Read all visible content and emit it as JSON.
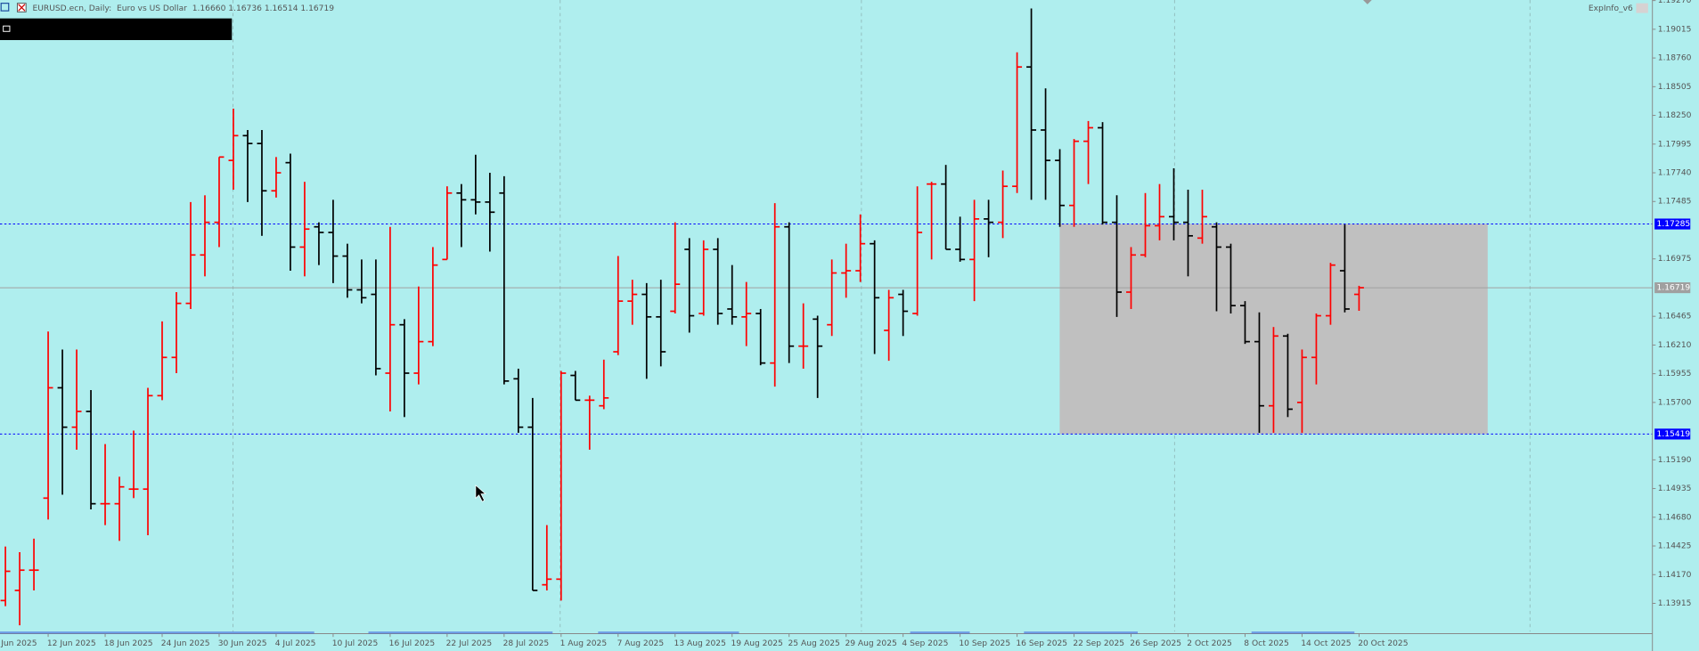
{
  "chart_data": {
    "type": "ohlc",
    "title": "EURUSD.ecn, Daily:  Euro vs US Dollar  1.16660 1.16736 1.16514 1.16719",
    "indicator": "ExpInfo_v6",
    "first_date_label": "Jun 2025",
    "up_color": "#ff0000",
    "down_color": "#000000",
    "ylim": [
      1.13665,
      1.19275
    ],
    "yticks": [
      1.13915,
      {
        "value": 1.1417,
        "label": "1.14170"
      },
      1.14425,
      {
        "value": 1.1468,
        "label": "1.14680"
      },
      1.14935,
      {
        "value": 1.1519,
        "label": "1.15190"
      },
      {
        "value": 1.157,
        "label": "1.15700"
      },
      1.15955,
      {
        "value": 1.1621,
        "label": "1.16210"
      },
      1.16465,
      1.16975,
      1.17485,
      {
        "value": 1.1774,
        "label": "1.17740"
      },
      1.17995,
      {
        "value": 1.1825,
        "label": "1.18250"
      },
      1.18505,
      {
        "value": 1.1876,
        "label": "1.18760"
      },
      1.19015,
      {
        "value": 1.1927,
        "label": "1.19270"
      }
    ],
    "levels": [
      {
        "value": 1.17285,
        "color": "#0000ff",
        "style": "dotted"
      },
      {
        "value": 1.15419,
        "color": "#0000ff",
        "style": "dotted"
      },
      {
        "value": 1.16719,
        "color": "#a0a0a0",
        "style": "solid"
      }
    ],
    "categories": [
      null,
      null,
      null,
      "12 Jun 2025",
      null,
      null,
      null,
      "18 Jun 2025",
      null,
      null,
      null,
      "24 Jun 2025",
      null,
      null,
      null,
      "30 Jun 2025",
      null,
      null,
      null,
      "4 Jul 2025",
      null,
      null,
      null,
      "10 Jul 2025",
      null,
      null,
      null,
      "16 Jul 2025",
      null,
      null,
      null,
      "22 Jul 2025",
      null,
      null,
      null,
      "28 Jul 2025",
      null,
      null,
      null,
      "1 Aug 2025",
      null,
      null,
      null,
      "7 Aug 2025",
      null,
      null,
      null,
      "13 Aug 2025",
      null,
      null,
      null,
      "19 Aug 2025",
      null,
      null,
      null,
      "25 Aug 2025",
      null,
      null,
      null,
      "29 Aug 2025",
      null,
      null,
      null,
      "4 Sep 2025",
      null,
      null,
      null,
      "10 Sep 2025",
      null,
      null,
      null,
      "16 Sep 2025",
      null,
      null,
      null,
      "22 Sep 2025",
      null,
      null,
      null,
      "26 Sep 2025",
      null,
      null,
      null,
      "2 Oct 2025",
      null,
      null,
      null,
      "8 Oct 2025",
      null,
      null,
      null,
      "14 Oct 2025",
      null,
      null,
      null,
      "20 Oct 2025"
    ],
    "open": [
      1.1394,
      1.1403,
      1.1421,
      1.1485,
      1.1583,
      1.1548,
      1.1562,
      1.148,
      1.148,
      1.1493,
      1.1493,
      1.1576,
      1.161,
      1.1658,
      1.1701,
      1.173,
      1.1785,
      1.1807,
      1.18,
      1.1758,
      1.1783,
      1.1708,
      1.1726,
      1.1721,
      1.17,
      1.167,
      1.1666,
      1.1596,
      1.1639,
      1.1596,
      1.1624,
      1.1697,
      1.1756,
      1.175,
      1.1748,
      1.1756,
      1.1591,
      1.1548,
      1.1408,
      1.1413,
      1.1594,
      1.1572,
      1.1567,
      1.1615,
      1.166,
      1.1666,
      1.1646,
      1.1651,
      1.1706,
      1.1649,
      1.1706,
      1.1653,
      1.1646,
      1.1649,
      1.1605,
      1.1726,
      1.162,
      1.1644,
      1.1639,
      1.1685,
      1.1687,
      1.1711,
      1.1634,
      1.1666,
      1.1649,
      1.1764,
      1.1764,
      1.1706,
      1.1697,
      1.1733,
      1.173,
      1.1762,
      1.1868,
      1.1812,
      1.1785,
      1.1745,
      1.1802,
      1.1814,
      1.173,
      1.1668,
      1.1701,
      1.1727,
      1.1735,
      1.173,
      1.1716,
      1.1726,
      1.1708,
      1.1656,
      1.1624,
      1.1567,
      1.1629,
      1.157,
      1.161,
      1.1647,
      1.1687,
      1.1666
    ],
    "high": [
      1.1442,
      1.1437,
      1.1449,
      1.1633,
      1.1617,
      1.1617,
      1.1581,
      1.1533,
      1.1504,
      1.1545,
      1.1583,
      1.1642,
      1.1668,
      1.1748,
      1.1754,
      1.1788,
      1.1831,
      1.1812,
      1.1812,
      1.1788,
      1.1791,
      1.1766,
      1.173,
      1.175,
      1.1711,
      1.1697,
      1.1697,
      1.1726,
      1.1644,
      1.1673,
      1.1708,
      1.1762,
      1.1764,
      1.179,
      1.1774,
      1.1771,
      1.16,
      1.1574,
      1.1461,
      1.1598,
      1.1598,
      1.1576,
      1.1608,
      1.17,
      1.1679,
      1.1676,
      1.1679,
      1.173,
      1.1716,
      1.1714,
      1.1716,
      1.1692,
      1.1677,
      1.1653,
      1.1747,
      1.173,
      1.1658,
      1.1647,
      1.1697,
      1.1711,
      1.1737,
      1.1714,
      1.167,
      1.167,
      1.1762,
      1.1766,
      1.1781,
      1.1735,
      1.175,
      1.175,
      1.1776,
      1.1881,
      1.192,
      1.1849,
      1.1795,
      1.1804,
      1.182,
      1.1819,
      1.1754,
      1.1708,
      1.1756,
      1.1764,
      1.1778,
      1.1759,
      1.1759,
      1.173,
      1.1711,
      1.166,
      1.165,
      1.1637,
      1.1631,
      1.1617,
      1.1649,
      1.1694,
      1.1728,
      1.16736
    ],
    "low": [
      1.1389,
      1.1372,
      1.1403,
      1.1466,
      1.1488,
      1.1528,
      1.1475,
      1.1461,
      1.1447,
      1.1485,
      1.1452,
      1.1572,
      1.1596,
      1.1653,
      1.1682,
      1.1708,
      1.1759,
      1.1748,
      1.1718,
      1.1752,
      1.1687,
      1.1682,
      1.1692,
      1.1676,
      1.1663,
      1.1658,
      1.1594,
      1.1562,
      1.1557,
      1.1586,
      1.162,
      1.1697,
      1.1708,
      1.1737,
      1.1704,
      1.1586,
      1.1543,
      1.1403,
      1.1403,
      1.1394,
      1.1572,
      1.1528,
      1.1564,
      1.1612,
      1.1639,
      1.1591,
      1.1602,
      1.1649,
      1.1632,
      1.1647,
      1.1639,
      1.1639,
      1.162,
      1.1603,
      1.1584,
      1.1605,
      1.16,
      1.1574,
      1.1629,
      1.1663,
      1.1677,
      1.1613,
      1.1607,
      1.1629,
      1.1647,
      1.1697,
      1.1706,
      1.1695,
      1.166,
      1.1699,
      1.1716,
      1.1756,
      1.175,
      1.175,
      1.1726,
      1.1726,
      1.1764,
      1.1728,
      1.1646,
      1.1653,
      1.1699,
      1.1714,
      1.1714,
      1.1682,
      1.1711,
      1.1651,
      1.1649,
      1.1622,
      1.1543,
      1.1543,
      1.1557,
      1.1543,
      1.1586,
      1.1639,
      1.165,
      1.16514
    ],
    "close": [
      1.142,
      1.1421,
      1.1421,
      1.1583,
      1.1548,
      1.1562,
      1.148,
      1.148,
      1.1495,
      1.1493,
      1.1576,
      1.161,
      1.1658,
      1.1701,
      1.173,
      1.1788,
      1.1807,
      1.18,
      1.1758,
      1.1774,
      1.1708,
      1.1724,
      1.1721,
      1.17,
      1.167,
      1.1663,
      1.16,
      1.1639,
      1.1596,
      1.1624,
      1.1692,
      1.1756,
      1.175,
      1.1748,
      1.1739,
      1.1589,
      1.1548,
      1.1403,
      1.1413,
      1.1596,
      1.1572,
      1.1572,
      1.1574,
      1.166,
      1.1666,
      1.1646,
      1.1615,
      1.1675,
      1.1647,
      1.1706,
      1.1649,
      1.1646,
      1.1649,
      1.1605,
      1.1726,
      1.162,
      1.162,
      1.162,
      1.1685,
      1.1687,
      1.1711,
      1.1663,
      1.1663,
      1.1651,
      1.1721,
      1.1764,
      1.1706,
      1.1697,
      1.1733,
      1.173,
      1.1762,
      1.1868,
      1.1812,
      1.1785,
      1.1745,
      1.1802,
      1.1814,
      1.173,
      1.1668,
      1.1701,
      1.1727,
      1.1735,
      1.173,
      1.1718,
      1.1735,
      1.1708,
      1.1656,
      1.1624,
      1.1567,
      1.1629,
      1.1564,
      1.161,
      1.1647,
      1.1692,
      1.1653,
      1.16719
    ]
  }
}
